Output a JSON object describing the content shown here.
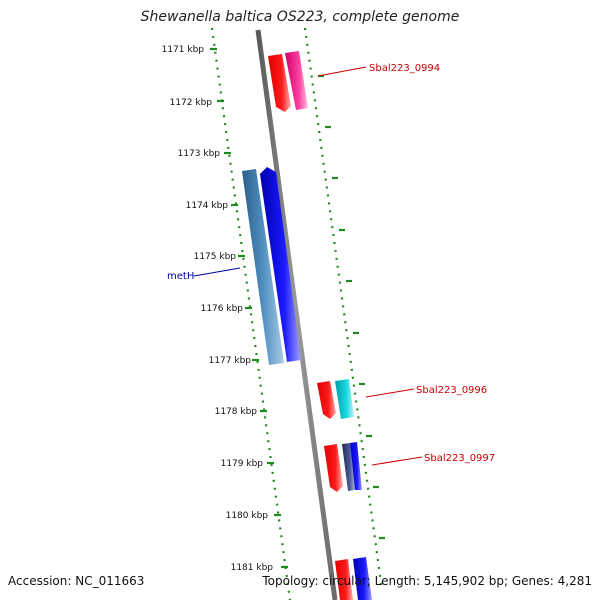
{
  "title": "Shewanella baltica OS223, complete genome",
  "accession_line": "Accession: NC_011663",
  "summary_line": "Topology: circular; Length: 5,145,902 bp; Genes: 4,281",
  "colors": {
    "backbone": "#7a7a7a",
    "ruler": "#1f8a1f",
    "label_red": "#cc0000",
    "label_blue": "#000099"
  },
  "ruler_ticks": [
    "1171 kbp",
    "1172 kbp",
    "1173 kbp",
    "1174 kbp",
    "1175 kbp",
    "1176 kbp",
    "1177 kbp",
    "1178 kbp",
    "1179 kbp",
    "1180 kbp",
    "1181 kbp"
  ],
  "genes": [
    {
      "name": "Sbal223_0994",
      "color": "red"
    },
    {
      "name": "metH",
      "color": "blue"
    },
    {
      "name": "Sbal223_0996",
      "color": "red"
    },
    {
      "name": "Sbal223_0997",
      "color": "red"
    }
  ]
}
